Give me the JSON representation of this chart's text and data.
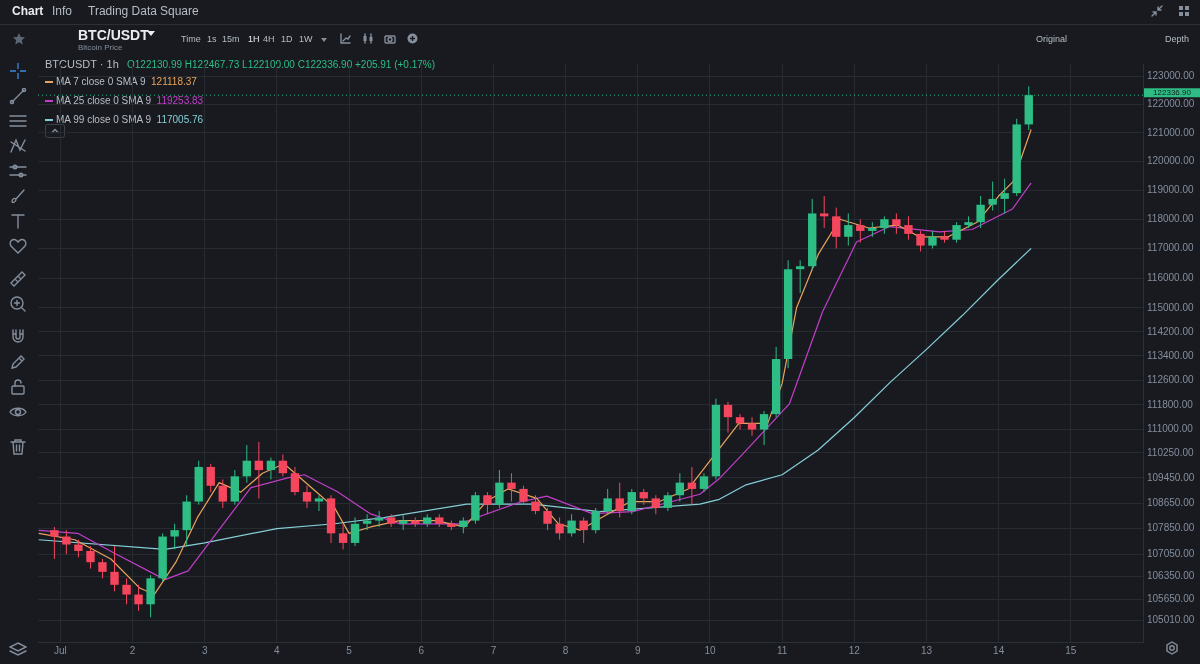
{
  "chart_data": {
    "type": "candlestick",
    "title": "BTC/USDT",
    "subtitle": "Bitcoin Price",
    "x": [
      0.917,
      1.083,
      1.25,
      1.417,
      1.583,
      1.75,
      1.917,
      2.083,
      2.25,
      2.417,
      2.583,
      2.75,
      2.917,
      3.083,
      3.25,
      3.417,
      3.583,
      3.75,
      3.917,
      4.083,
      4.25,
      4.417,
      4.583,
      4.75,
      4.917,
      5.083,
      5.25,
      5.417,
      5.583,
      5.75,
      5.917,
      6.083,
      6.25,
      6.417,
      6.583,
      6.75,
      6.917,
      7.083,
      7.25,
      7.417,
      7.583,
      7.75,
      7.917,
      8.083,
      8.25,
      8.417,
      8.583,
      8.75,
      8.917,
      9.083,
      9.25,
      9.417,
      9.583,
      9.75,
      9.917,
      10.083,
      10.25,
      10.417,
      10.583,
      10.75,
      10.917,
      11.083,
      11.25,
      11.417,
      11.583,
      11.75,
      11.917,
      12.083,
      12.25,
      12.417,
      12.583,
      12.75,
      12.917,
      13.083,
      13.25,
      13.417,
      13.583,
      13.75,
      13.917,
      14.083,
      14.25,
      14.417
    ],
    "ohlc": [
      [
        107800,
        107900,
        106900,
        107600
      ],
      [
        107600,
        107800,
        107050,
        107350
      ],
      [
        107350,
        107500,
        106950,
        107150
      ],
      [
        107150,
        107300,
        106600,
        106800
      ],
      [
        106800,
        106900,
        106300,
        106500
      ],
      [
        106500,
        107300,
        105900,
        106100
      ],
      [
        106100,
        106300,
        105500,
        105800
      ],
      [
        105800,
        106100,
        105300,
        105500
      ],
      [
        105500,
        106400,
        105100,
        106300
      ],
      [
        106300,
        107700,
        106200,
        107600
      ],
      [
        107600,
        108000,
        107200,
        107800
      ],
      [
        107800,
        108900,
        107300,
        108700
      ],
      [
        108700,
        110000,
        108600,
        109800
      ],
      [
        109800,
        109900,
        109000,
        109200
      ],
      [
        109200,
        109400,
        108500,
        108700
      ],
      [
        108700,
        109700,
        108600,
        109500
      ],
      [
        109500,
        110500,
        109300,
        110000
      ],
      [
        110000,
        110600,
        108800,
        109700
      ],
      [
        109700,
        110100,
        109400,
        110000
      ],
      [
        110000,
        110200,
        109500,
        109600
      ],
      [
        109600,
        109800,
        108900,
        109000
      ],
      [
        109000,
        109200,
        108500,
        108700
      ],
      [
        108700,
        108900,
        108400,
        108800
      ],
      [
        108800,
        108900,
        107400,
        107700
      ],
      [
        107700,
        108000,
        107200,
        107400
      ],
      [
        107400,
        108200,
        107300,
        108000
      ],
      [
        108000,
        108300,
        107800,
        108100
      ],
      [
        108100,
        108400,
        107900,
        108200
      ],
      [
        108200,
        108300,
        107900,
        108000
      ],
      [
        108000,
        108300,
        107800,
        108100
      ],
      [
        108100,
        108200,
        107900,
        108000
      ],
      [
        108000,
        108300,
        107900,
        108200
      ],
      [
        108200,
        108300,
        107900,
        108000
      ],
      [
        108000,
        108100,
        107800,
        107900
      ],
      [
        107900,
        108200,
        107700,
        108100
      ],
      [
        108100,
        109000,
        108000,
        108900
      ],
      [
        108900,
        109000,
        108300,
        108600
      ],
      [
        108600,
        109700,
        108500,
        109300
      ],
      [
        109300,
        109600,
        108700,
        109100
      ],
      [
        109100,
        109200,
        108600,
        108700
      ],
      [
        108700,
        108900,
        108300,
        108400
      ],
      [
        108400,
        108500,
        107800,
        108000
      ],
      [
        108000,
        108200,
        107500,
        107700
      ],
      [
        107700,
        108300,
        107600,
        108100
      ],
      [
        108100,
        108200,
        107400,
        107800
      ],
      [
        107800,
        108500,
        107700,
        108400
      ],
      [
        108400,
        109100,
        108300,
        108800
      ],
      [
        108800,
        109300,
        108200,
        108400
      ],
      [
        108400,
        109100,
        108300,
        109000
      ],
      [
        109000,
        109100,
        108600,
        108800
      ],
      [
        108800,
        108900,
        108300,
        108500
      ],
      [
        108500,
        109000,
        108400,
        108900
      ],
      [
        108900,
        109600,
        108700,
        109300
      ],
      [
        109300,
        109800,
        108600,
        109100
      ],
      [
        109100,
        109600,
        109000,
        109500
      ],
      [
        109500,
        112000,
        109400,
        111800
      ],
      [
        111800,
        111900,
        110900,
        111400
      ],
      [
        111400,
        111500,
        111000,
        111200
      ],
      [
        111200,
        111400,
        110800,
        111000
      ],
      [
        111000,
        111600,
        110500,
        111500
      ],
      [
        111500,
        113700,
        111400,
        113300
      ],
      [
        113300,
        116600,
        113000,
        116300
      ],
      [
        116300,
        116600,
        115500,
        116400
      ],
      [
        116400,
        118700,
        116300,
        118200
      ],
      [
        118200,
        118800,
        117700,
        118100
      ],
      [
        118100,
        118400,
        117000,
        117400
      ],
      [
        117400,
        118200,
        117100,
        117800
      ],
      [
        117800,
        118000,
        117200,
        117600
      ],
      [
        117600,
        117900,
        117400,
        117700
      ],
      [
        117700,
        118100,
        117500,
        118000
      ],
      [
        118000,
        118200,
        117500,
        117800
      ],
      [
        117800,
        118100,
        117300,
        117500
      ],
      [
        117500,
        117600,
        116900,
        117100
      ],
      [
        117100,
        117600,
        117000,
        117400
      ],
      [
        117400,
        117600,
        117200,
        117300
      ],
      [
        117300,
        117900,
        117200,
        117800
      ],
      [
        117800,
        118100,
        117700,
        117900
      ],
      [
        117900,
        118800,
        117700,
        118500
      ],
      [
        118500,
        119300,
        118300,
        118700
      ],
      [
        118700,
        119400,
        118200,
        118900
      ],
      [
        118900,
        121500,
        118800,
        121300
      ],
      [
        121300,
        122650,
        121100,
        122336.9
      ]
    ],
    "series": [
      {
        "name": "MA 7 close 0 SMA 9",
        "type": "line",
        "color": "#e9a45c",
        "x": [
          0.7,
          1.2,
          1.7,
          2.1,
          2.3,
          2.6,
          2.9,
          3.2,
          3.5,
          3.8,
          4.1,
          4.5,
          4.8,
          5.0,
          5.3,
          5.7,
          6.2,
          6.6,
          6.9,
          7.2,
          7.6,
          7.9,
          8.2,
          8.5,
          8.9,
          9.3,
          9.7,
          10.4,
          10.8,
          11.0,
          11.2,
          11.5,
          11.8,
          12.2,
          12.6,
          12.9,
          13.3,
          13.7,
          14.0,
          14.2,
          14.45
        ],
        "values": [
          107700,
          107500,
          106900,
          106000,
          105800,
          106800,
          108200,
          109300,
          109000,
          109600,
          109900,
          109100,
          108500,
          107700,
          107900,
          108100,
          108100,
          107900,
          108700,
          109100,
          108800,
          108000,
          107800,
          108200,
          108700,
          108700,
          109100,
          111200,
          111200,
          112500,
          115000,
          116800,
          118000,
          117700,
          117800,
          117400,
          117400,
          117900,
          118800,
          119300,
          121118.37
        ]
      },
      {
        "name": "MA 25 close 0 SMA 9",
        "type": "line",
        "color": "#c23fc9",
        "x": [
          0.7,
          1.24,
          1.75,
          2.45,
          2.77,
          3.09,
          3.64,
          4.15,
          4.38,
          4.84,
          5.29,
          5.7,
          6.53,
          7.36,
          7.74,
          8.37,
          8.93,
          9.86,
          10.14,
          10.45,
          11.1,
          11.56,
          12.03,
          12.49,
          13.18,
          13.63,
          14.19,
          14.45
        ],
        "values": [
          107790,
          107700,
          107080,
          106260,
          106530,
          107490,
          109140,
          109450,
          109550,
          109010,
          108320,
          108000,
          108000,
          108680,
          108870,
          108320,
          108380,
          108930,
          109450,
          110200,
          111830,
          114870,
          117220,
          117750,
          117570,
          117650,
          118350,
          119253.83
        ]
      },
      {
        "name": "MA 99 close 0 SMA 9",
        "type": "line",
        "color": "#86cfd8",
        "x": [
          0.7,
          2.45,
          3.0,
          4.0,
          4.8,
          5.5,
          6.63,
          7.55,
          8.47,
          9.86,
          10.13,
          10.5,
          11.0,
          11.5,
          12.0,
          12.5,
          13.0,
          13.5,
          14.0,
          14.45
        ],
        "values": [
          107500,
          107200,
          107400,
          107850,
          108000,
          108200,
          108620,
          108620,
          108380,
          108620,
          108770,
          109230,
          109550,
          110340,
          111390,
          112540,
          113620,
          114750,
          115960,
          117005.76
        ]
      }
    ],
    "xlim": [
      0.69,
      16
    ],
    "xticks": [
      {
        "value": 1,
        "label": "Jul"
      },
      2,
      3,
      4,
      5,
      6,
      7,
      8,
      9,
      10,
      11,
      12,
      13,
      14,
      15
    ],
    "ylim": [
      104350,
      123450
    ],
    "yticks": [
      {
        "value": 105010,
        "label": "105010.00"
      },
      {
        "value": 105650,
        "label": "105650.00"
      },
      {
        "value": 106350,
        "label": "106350.00"
      },
      {
        "value": 107050,
        "label": "107050.00"
      },
      {
        "value": 107850,
        "label": "107850.00"
      },
      {
        "value": 108650,
        "label": "108650.00"
      },
      {
        "value": 109450,
        "label": "109450.00"
      },
      {
        "value": 110250,
        "label": "110250.00"
      },
      {
        "value": 111000,
        "label": "111000.00"
      },
      {
        "value": 111800,
        "label": "111800.00"
      },
      {
        "value": 112600,
        "label": "112600.00"
      },
      {
        "value": 113400,
        "label": "113400.00"
      },
      {
        "value": 114200,
        "label": "114200.00"
      },
      {
        "value": 115000,
        "label": "115000.00"
      },
      {
        "value": 116000,
        "label": "116000.00"
      },
      {
        "value": 117000,
        "label": "117000.00"
      },
      {
        "value": 118000,
        "label": "118000.00"
      },
      {
        "value": 119000,
        "label": "119000.00"
      },
      {
        "value": 120000,
        "label": "120000.00"
      },
      {
        "value": 121000,
        "label": "121000.00"
      },
      {
        "value": 122000,
        "label": "122000.00"
      },
      {
        "value": 123000,
        "label": "123000.00"
      }
    ],
    "log": "y",
    "grid": true,
    "legend": "top left",
    "ref_lines": [
      {
        "axis": "y",
        "value": 122336.9,
        "label": "122336.90",
        "color": "#2ebd85",
        "line_style": "dotted"
      }
    ],
    "annotations": [
      "Chart",
      "Info",
      "Trading Data",
      "Square",
      "Time",
      "1s",
      "15m",
      "1H",
      "4H",
      "1D",
      "1W",
      "Original",
      "Depth",
      "BTCUSDT · 1h",
      "O122130.99 H122467.73 L122100.00 C122336.90 +205.91 (+0.17%)",
      "121118.37",
      "119253.83",
      "117005.76"
    ]
  }
}
